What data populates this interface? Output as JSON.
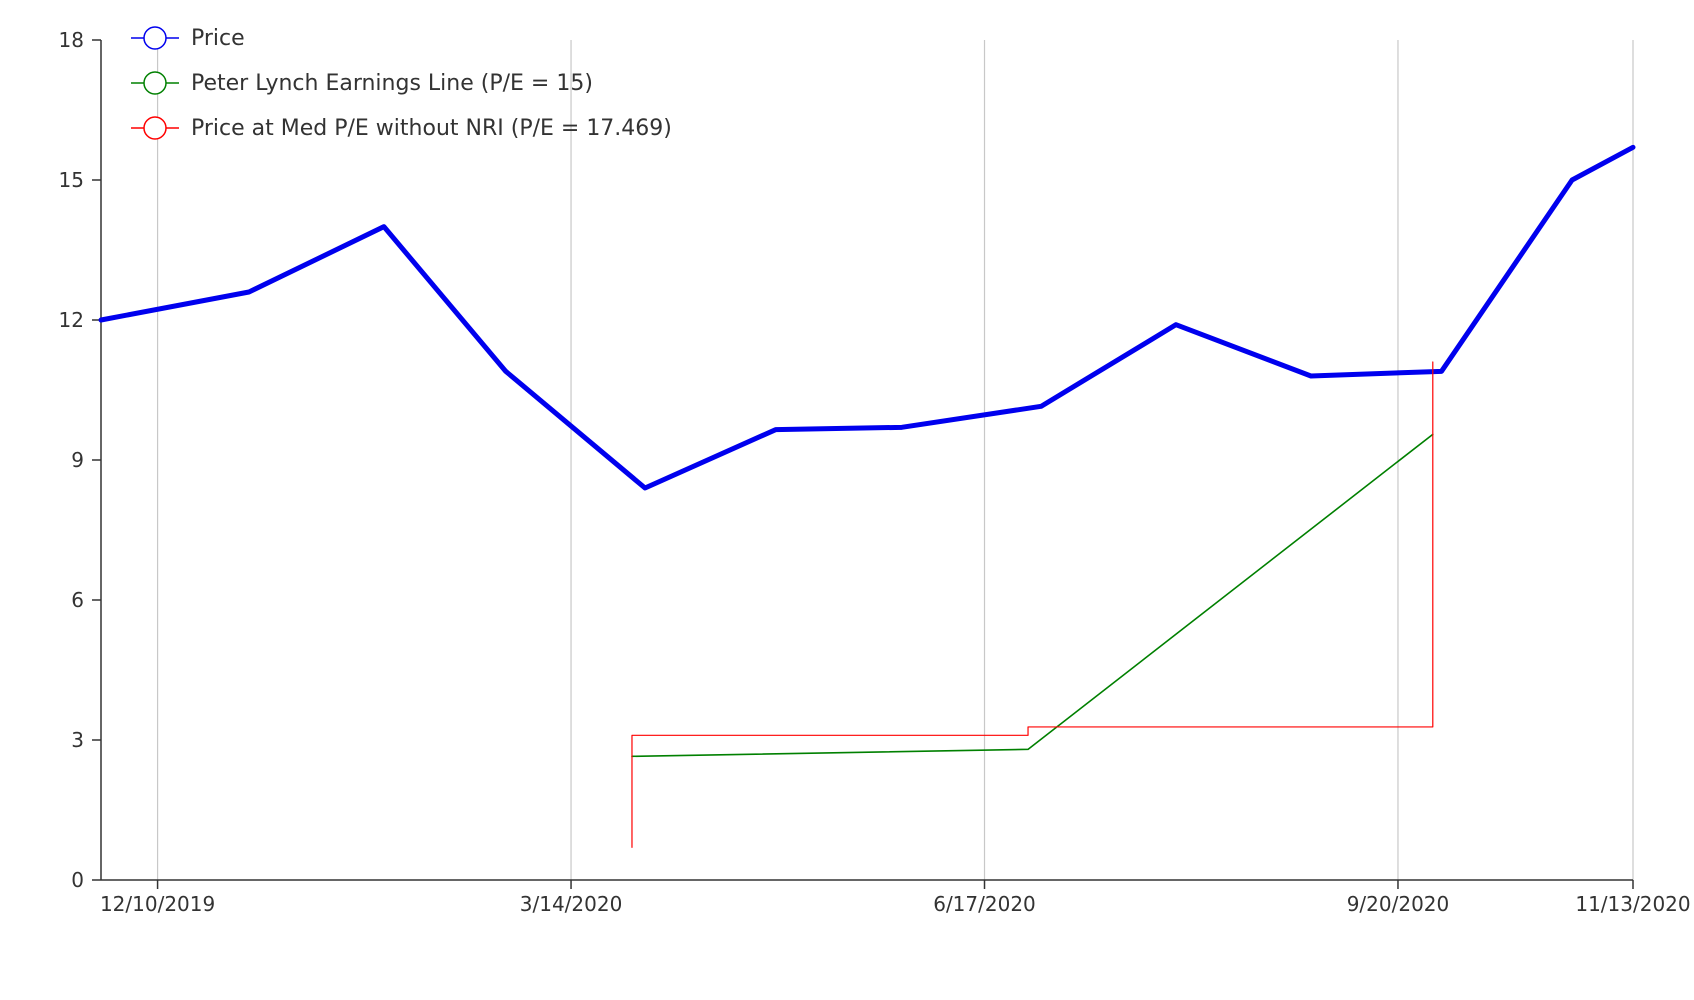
{
  "chart_data": {
    "type": "line",
    "title": "",
    "xlabel": "",
    "ylabel": "",
    "ylim": [
      0,
      18
    ],
    "yticks": [
      0,
      3,
      6,
      9,
      12,
      15,
      18
    ],
    "xlim": [
      "2019-11-27",
      "2020-11-13"
    ],
    "xticks": [
      {
        "date": "2019-12-10",
        "label": "12/10/2019"
      },
      {
        "date": "2020-03-14",
        "label": "3/14/2020"
      },
      {
        "date": "2020-06-17",
        "label": "6/17/2020"
      },
      {
        "date": "2020-09-20",
        "label": "9/20/2020"
      },
      {
        "date": "2020-11-13",
        "label": "11/13/2020"
      }
    ],
    "grid": {
      "vertical": true,
      "horizontal": false
    },
    "legend_position": "top-left",
    "series": [
      {
        "name": "Price",
        "color": "#0000ee",
        "style": "line",
        "points": [
          {
            "x": "2019-11-27",
            "y": 12.0
          },
          {
            "x": "2019-12-31",
            "y": 12.6
          },
          {
            "x": "2020-01-31",
            "y": 14.0
          },
          {
            "x": "2020-02-28",
            "y": 10.9
          },
          {
            "x": "2020-03-31",
            "y": 8.4
          },
          {
            "x": "2020-04-30",
            "y": 9.65
          },
          {
            "x": "2020-05-29",
            "y": 9.7
          },
          {
            "x": "2020-06-30",
            "y": 10.15
          },
          {
            "x": "2020-07-31",
            "y": 11.9
          },
          {
            "x": "2020-08-31",
            "y": 10.8
          },
          {
            "x": "2020-09-30",
            "y": 10.9
          },
          {
            "x": "2020-10-30",
            "y": 15.0
          },
          {
            "x": "2020-11-13",
            "y": 15.7
          }
        ]
      },
      {
        "name": "Peter Lynch Earnings Line (P/E = 15)",
        "color": "#008000",
        "style": "line",
        "points": [
          {
            "x": "2020-03-28",
            "y": 2.65
          },
          {
            "x": "2020-06-27",
            "y": 2.8
          },
          {
            "x": "2020-09-28",
            "y": 9.55
          }
        ]
      },
      {
        "name": "Price at Med P/E without NRI (P/E = 17.469)",
        "color": "#ff0000",
        "style": "step",
        "points": [
          {
            "x": "2020-03-28",
            "y": 0.7
          },
          {
            "x": "2020-03-28",
            "y": 3.1
          },
          {
            "x": "2020-06-27",
            "y": 3.1
          },
          {
            "x": "2020-06-27",
            "y": 3.28
          },
          {
            "x": "2020-09-28",
            "y": 3.28
          },
          {
            "x": "2020-09-28",
            "y": 11.1
          }
        ]
      }
    ]
  }
}
